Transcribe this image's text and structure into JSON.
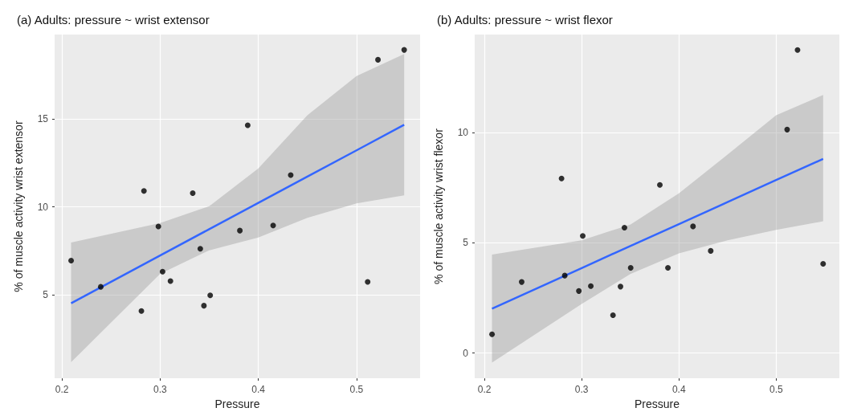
{
  "chart_data": [
    {
      "type": "scatter",
      "title": "(a) Adults: pressure ~ wrist extensor",
      "xlabel": "Pressure",
      "ylabel": "% of muscle activity wrist extensor",
      "xlim": [
        0.1925,
        0.5648
      ],
      "ylim": [
        0.28,
        19.78
      ],
      "xticks": [
        0.2,
        0.3,
        0.4,
        0.5
      ],
      "yticks": [
        5,
        10,
        15
      ],
      "grid": true,
      "series": [
        {
          "marker": "circle",
          "color": "#000000",
          "x": [
            0.2093,
            0.2395,
            0.2809,
            0.2835,
            0.2982,
            0.3025,
            0.3105,
            0.3332,
            0.3409,
            0.3446,
            0.351,
            0.3812,
            0.3892,
            0.4151,
            0.433,
            0.5114,
            0.5219,
            0.5486
          ],
          "values": [
            6.96,
            5.47,
            4.1,
            10.91,
            8.89,
            6.33,
            5.8,
            10.78,
            7.63,
            4.4,
            4.99,
            8.66,
            14.63,
            8.95,
            11.81,
            5.75,
            18.35,
            18.91
          ]
        },
        {
          "type": "line",
          "marker": "none",
          "color": "#3366ff",
          "x": [
            0.2093,
            0.3,
            0.35,
            0.4,
            0.45,
            0.5,
            0.5486
          ],
          "values": [
            4.54,
            7.25,
            8.74,
            10.23,
            11.72,
            13.21,
            14.66
          ],
          "lower": [
            1.19,
            6.21,
            7.54,
            8.27,
            9.38,
            10.2,
            10.66
          ],
          "upper": [
            7.98,
            9.09,
            10.04,
            12.18,
            15.2,
            17.42,
            18.67
          ]
        }
      ]
    },
    {
      "type": "scatter",
      "title": "(b) Adults: pressure ~ wrist flexor",
      "xlabel": "Pressure",
      "ylabel": "% of muscle activity wrist flexor",
      "xlim": [
        0.19,
        0.565
      ],
      "ylim": [
        -1.15,
        14.44
      ],
      "xticks": [
        0.2,
        0.3,
        0.4,
        0.5
      ],
      "yticks": [
        0,
        5,
        10
      ],
      "grid": true,
      "series": [
        {
          "marker": "circle",
          "color": "#000000",
          "x": [
            0.2078,
            0.2383,
            0.2793,
            0.2826,
            0.2971,
            0.3011,
            0.3094,
            0.3322,
            0.3399,
            0.344,
            0.3504,
            0.3804,
            0.3887,
            0.4145,
            0.4327,
            0.5113,
            0.522,
            0.5483
          ],
          "values": [
            0.85,
            3.22,
            7.91,
            3.51,
            2.81,
            5.31,
            3.03,
            1.71,
            3.01,
            5.68,
            3.86,
            7.62,
            3.86,
            5.74,
            4.63,
            10.13,
            13.74,
            4.04
          ]
        },
        {
          "type": "line",
          "marker": "none",
          "color": "#3366ff",
          "x": [
            0.2078,
            0.3,
            0.35,
            0.4,
            0.45,
            0.5,
            0.5483
          ],
          "values": [
            2.01,
            3.85,
            4.85,
            5.84,
            6.84,
            7.84,
            8.8
          ],
          "lower": [
            -0.44,
            2.22,
            3.58,
            4.52,
            5.11,
            5.58,
            5.97
          ],
          "upper": [
            4.46,
            5.11,
            5.82,
            7.24,
            9.0,
            10.78,
            11.7
          ]
        }
      ]
    }
  ]
}
